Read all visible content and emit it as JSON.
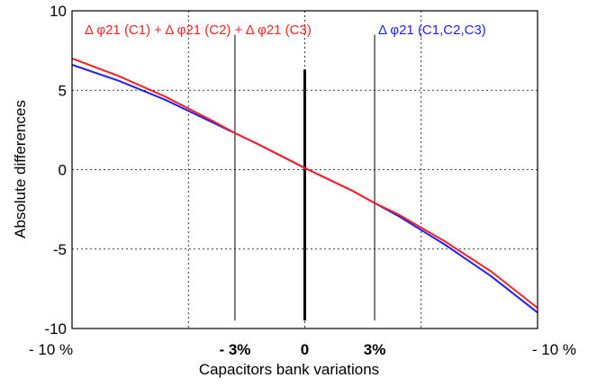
{
  "chart_data": {
    "type": "line",
    "xlabel": "Capacitors bank variations",
    "ylabel": "Absolute differences",
    "xlim": [
      -10,
      10
    ],
    "ylim": [
      -10,
      10
    ],
    "x_tick_labels": [
      {
        "value": -10,
        "label": "- 10 %",
        "bold": false
      },
      {
        "value": -3,
        "label": "- 3%",
        "bold": true
      },
      {
        "value": 0,
        "label": "0",
        "bold": true
      },
      {
        "value": 3,
        "label": "3%",
        "bold": true
      },
      {
        "value": 10,
        "label": "- 10 %",
        "bold": false
      }
    ],
    "y_ticks": [
      10,
      5,
      0,
      -5,
      -10
    ],
    "y_tick_labels": [
      "10",
      "5",
      "0",
      "-5",
      "-10"
    ],
    "grid": true,
    "series": [
      {
        "name": "Δ φ21 (C1) + Δ φ21 (C2) + Δ φ21 (C3)",
        "color": "#ff2020",
        "x": [
          -10,
          -8,
          -6,
          -4,
          -3,
          -2,
          0,
          2,
          3,
          4,
          6,
          8,
          10
        ],
        "y": [
          7.0,
          5.9,
          4.6,
          3.1,
          2.3,
          1.6,
          0.1,
          -1.3,
          -2.1,
          -2.8,
          -4.5,
          -6.4,
          -8.7
        ]
      },
      {
        "name": "Δ φ21 (C1,C2,C3)",
        "color": "#2020ff",
        "x": [
          -10,
          -8,
          -6,
          -4,
          -3,
          -2,
          0,
          2,
          3,
          4,
          6,
          8,
          10
        ],
        "y": [
          6.6,
          5.6,
          4.4,
          3.0,
          2.3,
          1.6,
          0.1,
          -1.3,
          -2.1,
          -2.9,
          -4.7,
          -6.7,
          -9.0
        ]
      }
    ],
    "reference_lines": [
      {
        "x": -3,
        "y_from": -9.5,
        "y_to": 8.5,
        "color": "#000000",
        "style": "thin"
      },
      {
        "x": 0,
        "y_from": -9.5,
        "y_to": 6.3,
        "color": "#000000",
        "style": "thick"
      },
      {
        "x": 3,
        "y_from": -9.5,
        "y_to": 8.5,
        "color": "#000000",
        "style": "thin"
      }
    ],
    "legend_placement": "top"
  }
}
